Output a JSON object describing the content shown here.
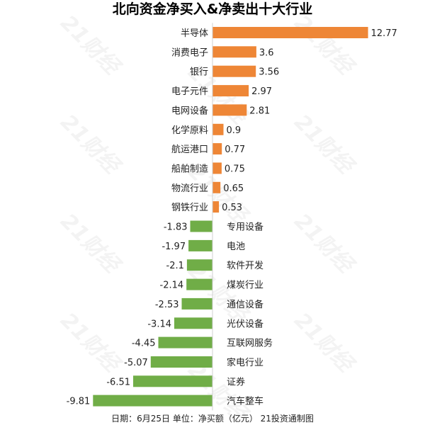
{
  "chart_data": {
    "type": "bar",
    "orientation": "horizontal",
    "title": "北向资金净买入&净卖出十大行业",
    "categories": [
      "半导体",
      "消费电子",
      "银行",
      "电子元件",
      "电网设备",
      "化学原料",
      "航运港口",
      "船舶制造",
      "物流行业",
      "钢铁行业",
      "专用设备",
      "电池",
      "软件开发",
      "煤炭行业",
      "通信设备",
      "光伏设备",
      "互联网服务",
      "家电行业",
      "证券",
      "汽车整车"
    ],
    "values": [
      12.77,
      3.6,
      3.56,
      2.97,
      2.81,
      0.9,
      0.77,
      0.75,
      0.65,
      0.53,
      -1.83,
      -1.97,
      -2.1,
      -2.14,
      -2.53,
      -3.14,
      -4.45,
      -5.07,
      -6.51,
      -9.81
    ],
    "value_labels": [
      "12.77",
      "3.6",
      "3.56",
      "2.97",
      "2.81",
      "0.9",
      "0.77",
      "0.75",
      "0.65",
      "0.53",
      "-1.83",
      "-1.97",
      "-2.1",
      "-2.14",
      "-2.53",
      "-3.14",
      "-4.45",
      "-5.07",
      "-6.51",
      "-9.81"
    ],
    "colors": {
      "positive": "#ee8636",
      "negative": "#70ad47"
    },
    "footer": "日期：6月25日 单位：净买额（亿元） 21投资通制图",
    "watermark": "21财经",
    "grid": false,
    "legend": "none"
  }
}
